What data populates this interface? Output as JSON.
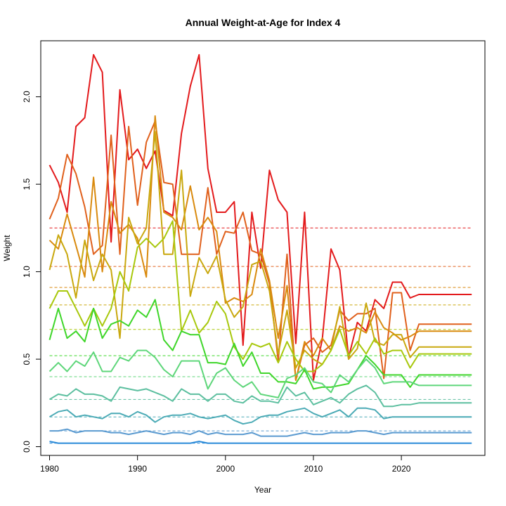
{
  "chart_data": {
    "type": "line",
    "title": "Annual Weight-at-Age for Index 4",
    "xlabel": "Year",
    "ylabel": "Weight",
    "xlim": [
      1979,
      2029.5
    ],
    "ylim": [
      -0.05,
      2.32
    ],
    "xticks": [
      1980,
      1990,
      2000,
      2010,
      2020
    ],
    "yticks": [
      0.0,
      0.5,
      1.0,
      1.5,
      2.0
    ],
    "x": [
      1980,
      1981,
      1982,
      1983,
      1984,
      1985,
      1986,
      1987,
      1988,
      1989,
      1990,
      1991,
      1992,
      1993,
      1994,
      1995,
      1996,
      1997,
      1998,
      1999,
      2000,
      2001,
      2002,
      2003,
      2004,
      2005,
      2006,
      2007,
      2008,
      2009,
      2010,
      2011,
      2012,
      2013,
      2014,
      2015,
      2016,
      2017,
      2018,
      2019,
      2020,
      2021,
      2022,
      2023,
      2024,
      2025,
      2026,
      2027,
      2028
    ],
    "series": [
      {
        "color": "#e31a1c",
        "mean": 1.25,
        "values": [
          1.61,
          1.51,
          1.34,
          1.83,
          1.88,
          2.24,
          2.14,
          1.17,
          2.04,
          1.64,
          1.7,
          1.59,
          1.69,
          1.35,
          1.32,
          1.79,
          2.06,
          2.24,
          1.59,
          1.34,
          1.34,
          1.4,
          0.58,
          1.34,
          1.02,
          1.58,
          1.41,
          1.34,
          0.59,
          1.34,
          0.38,
          0.61,
          1.13,
          1.01,
          0.51,
          0.71,
          0.66,
          0.84,
          0.79,
          0.94,
          0.94,
          0.85,
          0.87,
          0.87,
          0.87,
          0.87,
          0.87,
          0.87,
          0.87
        ]
      },
      {
        "color": "#e0601c",
        "mean": 1.03,
        "values": [
          1.3,
          1.42,
          1.67,
          1.56,
          1.37,
          1.1,
          1.15,
          1.78,
          1.1,
          1.83,
          1.38,
          1.74,
          1.86,
          1.51,
          1.5,
          1.1,
          1.1,
          1.1,
          1.48,
          1.1,
          1.23,
          1.22,
          1.34,
          1.12,
          1.1,
          0.93,
          0.49,
          1.1,
          0.38,
          0.58,
          0.62,
          0.54,
          0.58,
          0.78,
          0.72,
          0.76,
          0.76,
          0.79,
          0.39,
          0.88,
          0.88,
          0.55,
          0.7,
          0.7,
          0.7,
          0.7,
          0.7,
          0.7,
          0.7
        ]
      },
      {
        "color": "#d98a0e",
        "mean": 0.91,
        "values": [
          1.18,
          1.13,
          1.33,
          1.15,
          0.97,
          1.54,
          1.0,
          1.4,
          1.22,
          1.27,
          1.19,
          0.97,
          1.89,
          1.34,
          1.31,
          1.24,
          1.49,
          1.24,
          1.31,
          1.23,
          0.82,
          0.85,
          0.83,
          0.87,
          1.13,
          0.95,
          0.62,
          0.92,
          0.38,
          0.6,
          0.52,
          0.62,
          0.55,
          0.69,
          0.66,
          0.68,
          0.65,
          0.77,
          0.68,
          0.65,
          0.61,
          0.63,
          0.66,
          0.66,
          0.66,
          0.66,
          0.66,
          0.66,
          0.66
        ]
      },
      {
        "color": "#c9a80e",
        "mean": 0.81,
        "values": [
          1.01,
          1.21,
          1.1,
          0.85,
          1.18,
          0.95,
          1.1,
          1.01,
          0.62,
          1.31,
          1.16,
          1.25,
          1.8,
          1.1,
          1.1,
          1.58,
          0.86,
          1.08,
          0.99,
          1.09,
          0.84,
          0.74,
          0.8,
          1.04,
          1.06,
          0.89,
          0.53,
          0.78,
          0.45,
          0.55,
          0.5,
          0.47,
          0.55,
          0.8,
          0.5,
          0.56,
          0.82,
          0.6,
          0.58,
          0.64,
          0.64,
          0.51,
          0.57,
          0.57,
          0.57,
          0.57,
          0.57,
          0.57,
          0.57
        ]
      },
      {
        "color": "#a8c80c",
        "mean": 0.67,
        "values": [
          0.79,
          0.89,
          0.89,
          0.79,
          0.69,
          0.79,
          0.69,
          0.79,
          1.0,
          0.89,
          1.14,
          1.19,
          1.14,
          1.19,
          1.29,
          0.66,
          0.78,
          0.65,
          0.71,
          0.83,
          0.76,
          0.57,
          0.5,
          0.59,
          0.57,
          0.59,
          0.48,
          0.6,
          0.5,
          0.43,
          0.43,
          0.47,
          0.55,
          0.67,
          0.52,
          0.6,
          0.53,
          0.62,
          0.53,
          0.55,
          0.55,
          0.45,
          0.53,
          0.53,
          0.53,
          0.53,
          0.53,
          0.53,
          0.53
        ]
      },
      {
        "color": "#3fd62a",
        "mean": 0.52,
        "values": [
          0.61,
          0.79,
          0.62,
          0.66,
          0.6,
          0.79,
          0.62,
          0.7,
          0.72,
          0.69,
          0.78,
          0.74,
          0.84,
          0.61,
          0.55,
          0.66,
          0.64,
          0.64,
          0.48,
          0.48,
          0.47,
          0.59,
          0.46,
          0.54,
          0.42,
          0.42,
          0.37,
          0.37,
          0.36,
          0.44,
          0.33,
          0.34,
          0.34,
          0.35,
          0.36,
          0.44,
          0.52,
          0.47,
          0.41,
          0.41,
          0.41,
          0.34,
          0.41,
          0.41,
          0.41,
          0.41,
          0.41,
          0.41,
          0.41
        ]
      },
      {
        "color": "#5ed67a",
        "mean": 0.4,
        "values": [
          0.43,
          0.48,
          0.43,
          0.49,
          0.46,
          0.54,
          0.43,
          0.43,
          0.51,
          0.49,
          0.55,
          0.55,
          0.51,
          0.44,
          0.4,
          0.49,
          0.49,
          0.49,
          0.33,
          0.42,
          0.45,
          0.38,
          0.34,
          0.37,
          0.3,
          0.29,
          0.28,
          0.39,
          0.41,
          0.45,
          0.37,
          0.36,
          0.31,
          0.41,
          0.37,
          0.44,
          0.5,
          0.45,
          0.36,
          0.37,
          0.37,
          0.37,
          0.35,
          0.35,
          0.35,
          0.35,
          0.35,
          0.35,
          0.35
        ]
      },
      {
        "color": "#5cbf9f",
        "mean": 0.27,
        "values": [
          0.27,
          0.3,
          0.29,
          0.33,
          0.3,
          0.3,
          0.29,
          0.26,
          0.34,
          0.33,
          0.32,
          0.33,
          0.31,
          0.29,
          0.26,
          0.33,
          0.3,
          0.3,
          0.26,
          0.3,
          0.3,
          0.26,
          0.25,
          0.29,
          0.26,
          0.26,
          0.25,
          0.34,
          0.29,
          0.31,
          0.24,
          0.26,
          0.28,
          0.25,
          0.3,
          0.33,
          0.35,
          0.31,
          0.23,
          0.23,
          0.24,
          0.24,
          0.25,
          0.25,
          0.25,
          0.25,
          0.25,
          0.25,
          0.25
        ]
      },
      {
        "color": "#4aaab5",
        "mean": 0.17,
        "values": [
          0.17,
          0.2,
          0.21,
          0.17,
          0.18,
          0.17,
          0.16,
          0.19,
          0.19,
          0.17,
          0.2,
          0.18,
          0.14,
          0.17,
          0.18,
          0.18,
          0.19,
          0.17,
          0.16,
          0.17,
          0.18,
          0.15,
          0.13,
          0.14,
          0.17,
          0.18,
          0.18,
          0.2,
          0.21,
          0.22,
          0.19,
          0.17,
          0.19,
          0.21,
          0.17,
          0.22,
          0.22,
          0.21,
          0.16,
          0.17,
          0.17,
          0.17,
          0.17,
          0.17,
          0.17,
          0.17,
          0.17,
          0.17,
          0.17
        ]
      },
      {
        "color": "#5a9ad0",
        "mean": 0.09,
        "values": [
          0.09,
          0.09,
          0.1,
          0.08,
          0.09,
          0.09,
          0.09,
          0.08,
          0.08,
          0.07,
          0.08,
          0.09,
          0.08,
          0.07,
          0.08,
          0.08,
          0.07,
          0.09,
          0.07,
          0.08,
          0.07,
          0.07,
          0.07,
          0.08,
          0.06,
          0.06,
          0.06,
          0.06,
          0.07,
          0.08,
          0.07,
          0.07,
          0.08,
          0.08,
          0.08,
          0.09,
          0.09,
          0.08,
          0.07,
          0.08,
          0.08,
          0.08,
          0.08,
          0.08,
          0.08,
          0.08,
          0.08,
          0.08,
          0.08
        ]
      },
      {
        "color": "#2a8ad8",
        "mean": 0.02,
        "values": [
          0.03,
          0.02,
          0.02,
          0.02,
          0.02,
          0.02,
          0.02,
          0.02,
          0.02,
          0.02,
          0.02,
          0.02,
          0.02,
          0.02,
          0.02,
          0.02,
          0.02,
          0.03,
          0.02,
          0.02,
          0.02,
          0.02,
          0.02,
          0.02,
          0.02,
          0.02,
          0.02,
          0.02,
          0.02,
          0.02,
          0.02,
          0.02,
          0.02,
          0.02,
          0.02,
          0.02,
          0.02,
          0.02,
          0.02,
          0.02,
          0.02,
          0.02,
          0.02,
          0.02,
          0.02,
          0.02,
          0.02,
          0.02,
          0.02
        ]
      }
    ]
  }
}
